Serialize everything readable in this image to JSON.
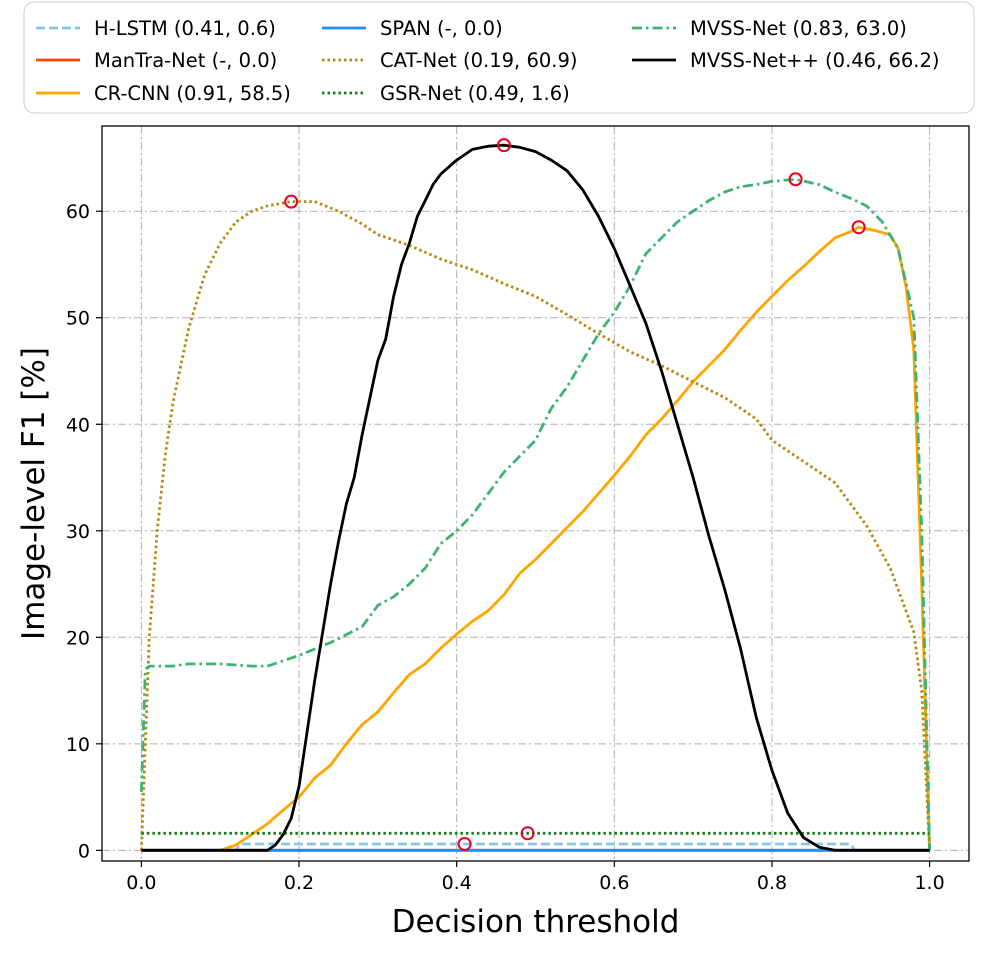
{
  "chart_data": {
    "type": "line",
    "xlabel": "Decision threshold",
    "ylabel": "Image-level F1 [%]",
    "xlim": [
      -0.05,
      1.05
    ],
    "ylim": [
      -1,
      68
    ],
    "xticks": [
      0.0,
      0.2,
      0.4,
      0.6,
      0.8,
      1.0
    ],
    "xtick_labels": [
      "0.0",
      "0.2",
      "0.4",
      "0.6",
      "0.8",
      "1.0"
    ],
    "yticks": [
      0,
      10,
      20,
      30,
      40,
      50,
      60
    ],
    "ytick_labels": [
      "0",
      "10",
      "20",
      "30",
      "40",
      "50",
      "60"
    ],
    "grid": true,
    "legend_placement": "top (above plot), 3 columns",
    "series": [
      {
        "name": "H-LSTM (0.41, 0.6)",
        "color": "#89c4f0",
        "dash": "dashed",
        "points": [
          [
            0.0,
            0.0
          ],
          [
            0.12,
            0.0
          ],
          [
            0.125,
            0.6
          ],
          [
            0.9,
            0.6
          ],
          [
            0.905,
            0.0
          ],
          [
            1.0,
            0.0
          ]
        ],
        "best": [
          0.41,
          0.6
        ]
      },
      {
        "name": "ManTra-Net (-, 0.0)",
        "color": "#ff4500",
        "dash": "solid",
        "points": [
          [
            0.0,
            0.0
          ],
          [
            1.0,
            0.0
          ]
        ],
        "best": null
      },
      {
        "name": "CR-CNN (0.91, 58.5)",
        "color": "#ffa500",
        "dash": "solid",
        "points": [
          [
            0.0,
            0.0
          ],
          [
            0.1,
            0.0
          ],
          [
            0.12,
            0.5
          ],
          [
            0.14,
            1.5
          ],
          [
            0.16,
            2.5
          ],
          [
            0.18,
            3.8
          ],
          [
            0.2,
            5.0
          ],
          [
            0.22,
            6.8
          ],
          [
            0.24,
            8.0
          ],
          [
            0.26,
            10.0
          ],
          [
            0.28,
            11.8
          ],
          [
            0.3,
            13.0
          ],
          [
            0.32,
            14.8
          ],
          [
            0.34,
            16.5
          ],
          [
            0.36,
            17.5
          ],
          [
            0.38,
            19.0
          ],
          [
            0.4,
            20.3
          ],
          [
            0.42,
            21.5
          ],
          [
            0.44,
            22.5
          ],
          [
            0.46,
            24.0
          ],
          [
            0.48,
            26.0
          ],
          [
            0.5,
            27.3
          ],
          [
            0.52,
            28.8
          ],
          [
            0.54,
            30.3
          ],
          [
            0.56,
            31.8
          ],
          [
            0.58,
            33.5
          ],
          [
            0.6,
            35.2
          ],
          [
            0.62,
            37.0
          ],
          [
            0.64,
            39.0
          ],
          [
            0.66,
            40.5
          ],
          [
            0.68,
            42.2
          ],
          [
            0.7,
            44.0
          ],
          [
            0.72,
            45.5
          ],
          [
            0.74,
            47.0
          ],
          [
            0.76,
            48.8
          ],
          [
            0.78,
            50.5
          ],
          [
            0.8,
            52.0
          ],
          [
            0.82,
            53.5
          ],
          [
            0.84,
            54.8
          ],
          [
            0.86,
            56.2
          ],
          [
            0.88,
            57.5
          ],
          [
            0.9,
            58.1
          ],
          [
            0.91,
            58.5
          ],
          [
            0.93,
            58.2
          ],
          [
            0.95,
            57.8
          ],
          [
            0.96,
            56.5
          ],
          [
            0.97,
            53.0
          ],
          [
            0.98,
            47.0
          ],
          [
            0.99,
            25.0
          ],
          [
            1.0,
            0.0
          ]
        ],
        "best": [
          0.91,
          58.5
        ]
      },
      {
        "name": "SPAN (-, 0.0)",
        "color": "#1f8fff",
        "dash": "solid",
        "points": [
          [
            0.0,
            0.0
          ],
          [
            1.0,
            0.0
          ]
        ],
        "best": null
      },
      {
        "name": "CAT-Net (0.19, 60.9)",
        "color": "#b8860b",
        "dash": "dotted",
        "points": [
          [
            0.0,
            0.0
          ],
          [
            0.005,
            10.0
          ],
          [
            0.01,
            20.0
          ],
          [
            0.02,
            30.0
          ],
          [
            0.03,
            37.0
          ],
          [
            0.04,
            42.0
          ],
          [
            0.06,
            49.0
          ],
          [
            0.08,
            54.0
          ],
          [
            0.1,
            57.0
          ],
          [
            0.12,
            59.0
          ],
          [
            0.14,
            60.0
          ],
          [
            0.16,
            60.5
          ],
          [
            0.19,
            60.9
          ],
          [
            0.22,
            60.9
          ],
          [
            0.25,
            60.0
          ],
          [
            0.28,
            58.8
          ],
          [
            0.3,
            57.8
          ],
          [
            0.34,
            56.8
          ],
          [
            0.38,
            55.5
          ],
          [
            0.42,
            54.5
          ],
          [
            0.46,
            53.2
          ],
          [
            0.5,
            52.0
          ],
          [
            0.54,
            50.3
          ],
          [
            0.58,
            48.5
          ],
          [
            0.62,
            46.8
          ],
          [
            0.66,
            45.5
          ],
          [
            0.7,
            44.0
          ],
          [
            0.74,
            42.5
          ],
          [
            0.78,
            40.5
          ],
          [
            0.8,
            38.5
          ],
          [
            0.84,
            36.5
          ],
          [
            0.88,
            34.5
          ],
          [
            0.92,
            30.5
          ],
          [
            0.95,
            26.5
          ],
          [
            0.98,
            20.5
          ],
          [
            0.99,
            15.0
          ],
          [
            1.0,
            0.0
          ]
        ],
        "best": [
          0.19,
          60.9
        ]
      },
      {
        "name": "GSR-Net (0.49, 1.6)",
        "color": "#1a7a1a",
        "dash": "dotted",
        "points": [
          [
            0.0,
            1.6
          ],
          [
            1.0,
            1.6
          ]
        ],
        "best": [
          0.49,
          1.6
        ]
      },
      {
        "name": "MVSS-Net (0.83, 63.0)",
        "color": "#3cb371",
        "dash": "dashdot",
        "points": [
          [
            0.0,
            5.5
          ],
          [
            0.005,
            17.0
          ],
          [
            0.01,
            17.3
          ],
          [
            0.04,
            17.3
          ],
          [
            0.06,
            17.5
          ],
          [
            0.1,
            17.5
          ],
          [
            0.14,
            17.3
          ],
          [
            0.16,
            17.3
          ],
          [
            0.2,
            18.3
          ],
          [
            0.24,
            19.5
          ],
          [
            0.28,
            21.0
          ],
          [
            0.3,
            23.0
          ],
          [
            0.32,
            23.8
          ],
          [
            0.34,
            25.0
          ],
          [
            0.36,
            26.5
          ],
          [
            0.38,
            28.8
          ],
          [
            0.4,
            30.0
          ],
          [
            0.42,
            31.5
          ],
          [
            0.44,
            33.5
          ],
          [
            0.46,
            35.5
          ],
          [
            0.48,
            37.0
          ],
          [
            0.5,
            38.5
          ],
          [
            0.52,
            41.5
          ],
          [
            0.54,
            43.5
          ],
          [
            0.56,
            46.0
          ],
          [
            0.58,
            48.5
          ],
          [
            0.6,
            50.5
          ],
          [
            0.62,
            53.0
          ],
          [
            0.64,
            56.0
          ],
          [
            0.66,
            57.5
          ],
          [
            0.68,
            59.0
          ],
          [
            0.7,
            60.0
          ],
          [
            0.72,
            61.0
          ],
          [
            0.74,
            61.8
          ],
          [
            0.76,
            62.3
          ],
          [
            0.78,
            62.5
          ],
          [
            0.8,
            62.8
          ],
          [
            0.83,
            63.0
          ],
          [
            0.86,
            62.5
          ],
          [
            0.88,
            61.8
          ],
          [
            0.9,
            61.2
          ],
          [
            0.92,
            60.5
          ],
          [
            0.94,
            59.0
          ],
          [
            0.96,
            56.5
          ],
          [
            0.98,
            50.0
          ],
          [
            0.99,
            30.0
          ],
          [
            1.0,
            0.0
          ]
        ],
        "best": [
          0.83,
          63.0
        ]
      },
      {
        "name": "MVSS-Net++ (0.46, 66.2)",
        "color": "#000000",
        "dash": "solid",
        "points": [
          [
            0.0,
            0.0
          ],
          [
            0.16,
            0.0
          ],
          [
            0.17,
            0.5
          ],
          [
            0.18,
            1.5
          ],
          [
            0.19,
            3.0
          ],
          [
            0.2,
            6.0
          ],
          [
            0.21,
            11.0
          ],
          [
            0.22,
            16.0
          ],
          [
            0.23,
            20.5
          ],
          [
            0.24,
            25.0
          ],
          [
            0.25,
            29.0
          ],
          [
            0.26,
            32.5
          ],
          [
            0.27,
            35.0
          ],
          [
            0.28,
            39.0
          ],
          [
            0.29,
            42.5
          ],
          [
            0.3,
            46.0
          ],
          [
            0.31,
            48.0
          ],
          [
            0.32,
            52.0
          ],
          [
            0.33,
            55.0
          ],
          [
            0.34,
            57.0
          ],
          [
            0.35,
            59.5
          ],
          [
            0.36,
            61.0
          ],
          [
            0.37,
            62.5
          ],
          [
            0.38,
            63.5
          ],
          [
            0.4,
            64.8
          ],
          [
            0.42,
            65.8
          ],
          [
            0.44,
            66.1
          ],
          [
            0.46,
            66.2
          ],
          [
            0.48,
            66.0
          ],
          [
            0.5,
            65.6
          ],
          [
            0.52,
            64.8
          ],
          [
            0.54,
            63.8
          ],
          [
            0.56,
            62.0
          ],
          [
            0.58,
            59.5
          ],
          [
            0.6,
            56.5
          ],
          [
            0.62,
            53.0
          ],
          [
            0.64,
            49.5
          ],
          [
            0.66,
            45.0
          ],
          [
            0.68,
            40.0
          ],
          [
            0.7,
            35.0
          ],
          [
            0.72,
            29.5
          ],
          [
            0.74,
            24.5
          ],
          [
            0.76,
            19.0
          ],
          [
            0.78,
            12.5
          ],
          [
            0.8,
            7.5
          ],
          [
            0.82,
            3.5
          ],
          [
            0.84,
            1.2
          ],
          [
            0.86,
            0.3
          ],
          [
            0.88,
            0.0
          ],
          [
            1.0,
            0.0
          ]
        ],
        "best": [
          0.46,
          66.2
        ]
      }
    ]
  }
}
